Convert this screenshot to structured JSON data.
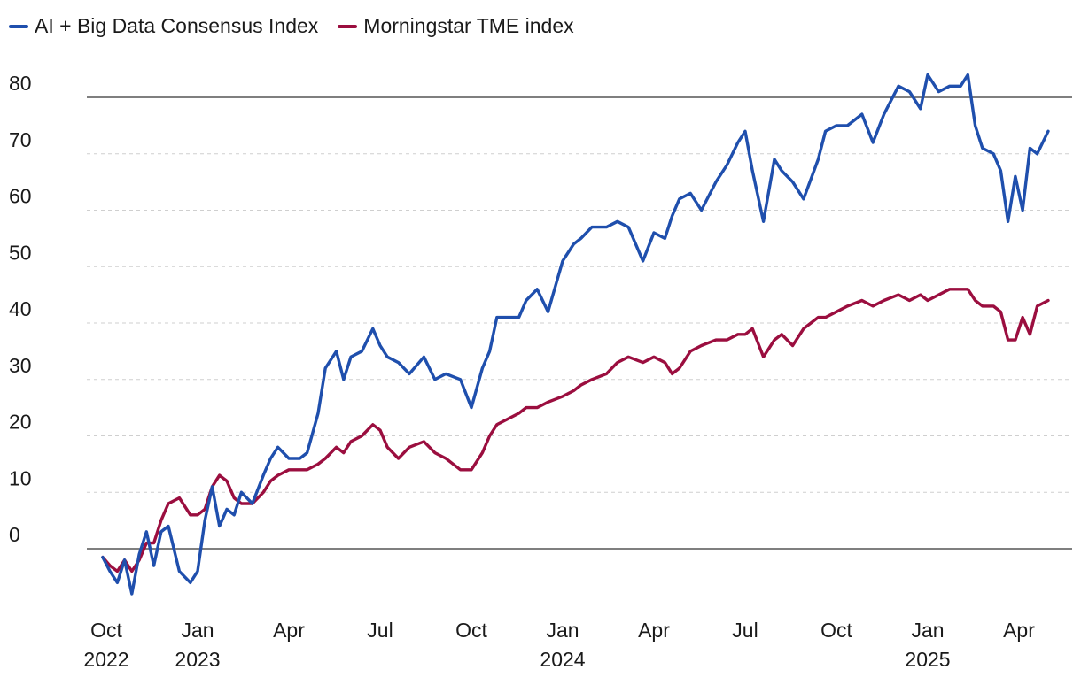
{
  "chart_data": {
    "type": "line",
    "title": "",
    "xlabel": "",
    "ylabel": "",
    "ylim": [
      -10,
      86
    ],
    "yticks": [
      0,
      10,
      20,
      30,
      40,
      50,
      60,
      70,
      80
    ],
    "xlim": [
      2022.7,
      2025.4
    ],
    "x_ticks": [
      {
        "x": 2022.75,
        "label": "Oct",
        "sub": "2022"
      },
      {
        "x": 2023.0,
        "label": "Jan",
        "sub": "2023"
      },
      {
        "x": 2023.25,
        "label": "Apr",
        "sub": ""
      },
      {
        "x": 2023.5,
        "label": "Jul",
        "sub": ""
      },
      {
        "x": 2023.75,
        "label": "Oct",
        "sub": ""
      },
      {
        "x": 2024.0,
        "label": "Jan",
        "sub": "2024"
      },
      {
        "x": 2024.25,
        "label": "Apr",
        "sub": ""
      },
      {
        "x": 2024.5,
        "label": "Jul",
        "sub": ""
      },
      {
        "x": 2024.75,
        "label": "Oct",
        "sub": ""
      },
      {
        "x": 2025.0,
        "label": "Jan",
        "sub": "2025"
      },
      {
        "x": 2025.25,
        "label": "Apr",
        "sub": ""
      }
    ],
    "series": [
      {
        "name": "AI + Big Data Consensus Index",
        "color": "#1f4fad",
        "x": [
          2022.74,
          2022.76,
          2022.78,
          2022.8,
          2022.82,
          2022.84,
          2022.86,
          2022.88,
          2022.9,
          2022.92,
          2022.95,
          2022.98,
          2023.0,
          2023.02,
          2023.04,
          2023.06,
          2023.08,
          2023.1,
          2023.12,
          2023.15,
          2023.18,
          2023.2,
          2023.22,
          2023.25,
          2023.28,
          2023.3,
          2023.33,
          2023.35,
          2023.38,
          2023.4,
          2023.42,
          2023.45,
          2023.48,
          2023.5,
          2023.52,
          2023.55,
          2023.58,
          2023.62,
          2023.65,
          2023.68,
          2023.72,
          2023.75,
          2023.78,
          2023.8,
          2023.82,
          2023.85,
          2023.88,
          2023.9,
          2023.93,
          2023.96,
          2024.0,
          2024.03,
          2024.05,
          2024.08,
          2024.12,
          2024.15,
          2024.18,
          2024.22,
          2024.25,
          2024.28,
          2024.3,
          2024.32,
          2024.35,
          2024.38,
          2024.42,
          2024.45,
          2024.48,
          2024.5,
          2024.52,
          2024.55,
          2024.58,
          2024.6,
          2024.63,
          2024.66,
          2024.7,
          2024.72,
          2024.75,
          2024.78,
          2024.82,
          2024.85,
          2024.88,
          2024.92,
          2024.95,
          2024.98,
          2025.0,
          2025.03,
          2025.06,
          2025.09,
          2025.11,
          2025.13,
          2025.15,
          2025.18,
          2025.2,
          2025.22,
          2025.24,
          2025.26,
          2025.28,
          2025.3,
          2025.33
        ],
        "values": [
          -1.5,
          -4,
          -6,
          -2,
          -8,
          -1,
          3,
          -3,
          3,
          4,
          -4,
          -6,
          -4,
          5,
          11,
          4,
          7,
          6,
          10,
          8,
          13,
          16,
          18,
          16,
          16,
          17,
          24,
          32,
          35,
          30,
          34,
          35,
          39,
          36,
          34,
          33,
          31,
          34,
          30,
          31,
          30,
          25,
          32,
          35,
          41,
          41,
          41,
          44,
          46,
          42,
          51,
          54,
          55,
          57,
          57,
          58,
          57,
          51,
          56,
          55,
          59,
          62,
          63,
          60,
          65,
          68,
          72,
          74,
          67,
          58,
          69,
          67,
          65,
          62,
          69,
          74,
          75,
          75,
          77,
          72,
          77,
          82,
          81,
          78,
          84,
          81,
          82,
          82,
          84,
          75,
          71,
          70,
          67,
          58,
          66,
          60,
          71,
          70,
          74
        ]
      },
      {
        "name": "Morningstar TME index",
        "color": "#9b0e3f",
        "x": [
          2022.74,
          2022.76,
          2022.78,
          2022.8,
          2022.82,
          2022.84,
          2022.86,
          2022.88,
          2022.9,
          2022.92,
          2022.95,
          2022.98,
          2023.0,
          2023.02,
          2023.04,
          2023.06,
          2023.08,
          2023.1,
          2023.12,
          2023.15,
          2023.18,
          2023.2,
          2023.22,
          2023.25,
          2023.28,
          2023.3,
          2023.33,
          2023.35,
          2023.38,
          2023.4,
          2023.42,
          2023.45,
          2023.48,
          2023.5,
          2023.52,
          2023.55,
          2023.58,
          2023.62,
          2023.65,
          2023.68,
          2023.72,
          2023.75,
          2023.78,
          2023.8,
          2023.82,
          2023.85,
          2023.88,
          2023.9,
          2023.93,
          2023.96,
          2024.0,
          2024.03,
          2024.05,
          2024.08,
          2024.12,
          2024.15,
          2024.18,
          2024.22,
          2024.25,
          2024.28,
          2024.3,
          2024.32,
          2024.35,
          2024.38,
          2024.42,
          2024.45,
          2024.48,
          2024.5,
          2024.52,
          2024.55,
          2024.58,
          2024.6,
          2024.63,
          2024.66,
          2024.7,
          2024.72,
          2024.75,
          2024.78,
          2024.82,
          2024.85,
          2024.88,
          2024.92,
          2024.95,
          2024.98,
          2025.0,
          2025.03,
          2025.06,
          2025.09,
          2025.11,
          2025.13,
          2025.15,
          2025.18,
          2025.2,
          2025.22,
          2025.24,
          2025.26,
          2025.28,
          2025.3,
          2025.33
        ],
        "values": [
          -1.5,
          -3,
          -4,
          -2,
          -4,
          -2,
          1,
          1,
          5,
          8,
          9,
          6,
          6,
          7,
          11,
          13,
          12,
          9,
          8,
          8,
          10,
          12,
          13,
          14,
          14,
          14,
          15,
          16,
          18,
          17,
          19,
          20,
          22,
          21,
          18,
          16,
          18,
          19,
          17,
          16,
          14,
          14,
          17,
          20,
          22,
          23,
          24,
          25,
          25,
          26,
          27,
          28,
          29,
          30,
          31,
          33,
          34,
          33,
          34,
          33,
          31,
          32,
          35,
          36,
          37,
          37,
          38,
          38,
          39,
          34,
          37,
          38,
          36,
          39,
          41,
          41,
          42,
          43,
          44,
          43,
          44,
          45,
          44,
          45,
          44,
          45,
          46,
          46,
          46,
          44,
          43,
          43,
          42,
          37,
          37,
          41,
          38,
          43,
          44
        ]
      }
    ]
  },
  "legend": {
    "items": [
      {
        "label": "AI + Big Data Consensus Index",
        "color": "#1f4fad"
      },
      {
        "label": "Morningstar TME index",
        "color": "#9b0e3f"
      }
    ]
  }
}
